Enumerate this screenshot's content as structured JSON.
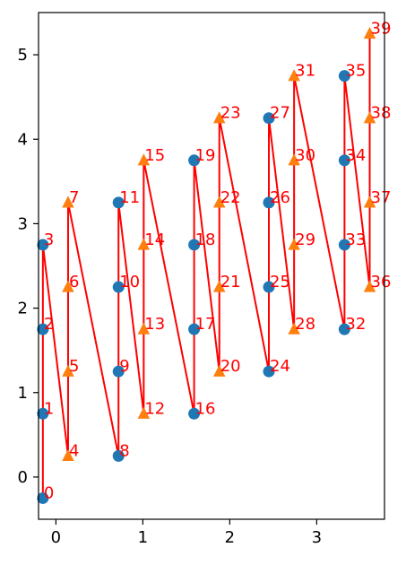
{
  "chart_data": {
    "type": "scatter",
    "title": "",
    "xlabel": "",
    "ylabel": "",
    "xlim": [
      -0.2,
      3.78
    ],
    "ylim": [
      -0.5,
      5.5
    ],
    "xticks": [
      0,
      1,
      2,
      3
    ],
    "yticks": [
      0,
      1,
      2,
      3,
      4,
      5
    ],
    "grid": false,
    "colors": {
      "circle": "#1f77b4",
      "triangle": "#ff7f0e",
      "line": "#ff0000",
      "label": "#ff0000"
    },
    "points": [
      {
        "label": "0",
        "x": -0.15,
        "y": -0.25,
        "marker": "circle"
      },
      {
        "label": "1",
        "x": -0.15,
        "y": 0.75,
        "marker": "circle"
      },
      {
        "label": "2",
        "x": -0.15,
        "y": 1.75,
        "marker": "circle"
      },
      {
        "label": "3",
        "x": -0.15,
        "y": 2.75,
        "marker": "circle"
      },
      {
        "label": "4",
        "x": 0.14,
        "y": 0.25,
        "marker": "triangle"
      },
      {
        "label": "5",
        "x": 0.14,
        "y": 1.25,
        "marker": "triangle"
      },
      {
        "label": "6",
        "x": 0.14,
        "y": 2.25,
        "marker": "triangle"
      },
      {
        "label": "7",
        "x": 0.14,
        "y": 3.25,
        "marker": "triangle"
      },
      {
        "label": "8",
        "x": 0.72,
        "y": 0.25,
        "marker": "circle"
      },
      {
        "label": "9",
        "x": 0.72,
        "y": 1.25,
        "marker": "circle"
      },
      {
        "label": "10",
        "x": 0.72,
        "y": 2.25,
        "marker": "circle"
      },
      {
        "label": "11",
        "x": 0.72,
        "y": 3.25,
        "marker": "circle"
      },
      {
        "label": "12",
        "x": 1.01,
        "y": 0.75,
        "marker": "triangle"
      },
      {
        "label": "13",
        "x": 1.01,
        "y": 1.75,
        "marker": "triangle"
      },
      {
        "label": "14",
        "x": 1.01,
        "y": 2.75,
        "marker": "triangle"
      },
      {
        "label": "15",
        "x": 1.01,
        "y": 3.75,
        "marker": "triangle"
      },
      {
        "label": "16",
        "x": 1.59,
        "y": 0.75,
        "marker": "circle"
      },
      {
        "label": "17",
        "x": 1.59,
        "y": 1.75,
        "marker": "circle"
      },
      {
        "label": "18",
        "x": 1.59,
        "y": 2.75,
        "marker": "circle"
      },
      {
        "label": "19",
        "x": 1.59,
        "y": 3.75,
        "marker": "circle"
      },
      {
        "label": "20",
        "x": 1.88,
        "y": 1.25,
        "marker": "triangle"
      },
      {
        "label": "21",
        "x": 1.88,
        "y": 2.25,
        "marker": "triangle"
      },
      {
        "label": "22",
        "x": 1.88,
        "y": 3.25,
        "marker": "triangle"
      },
      {
        "label": "23",
        "x": 1.88,
        "y": 4.25,
        "marker": "triangle"
      },
      {
        "label": "24",
        "x": 2.45,
        "y": 1.25,
        "marker": "circle"
      },
      {
        "label": "25",
        "x": 2.45,
        "y": 2.25,
        "marker": "circle"
      },
      {
        "label": "26",
        "x": 2.45,
        "y": 3.25,
        "marker": "circle"
      },
      {
        "label": "27",
        "x": 2.45,
        "y": 4.25,
        "marker": "circle"
      },
      {
        "label": "28",
        "x": 2.74,
        "y": 1.75,
        "marker": "triangle"
      },
      {
        "label": "29",
        "x": 2.74,
        "y": 2.75,
        "marker": "triangle"
      },
      {
        "label": "30",
        "x": 2.74,
        "y": 3.75,
        "marker": "triangle"
      },
      {
        "label": "31",
        "x": 2.74,
        "y": 4.75,
        "marker": "triangle"
      },
      {
        "label": "32",
        "x": 3.32,
        "y": 1.75,
        "marker": "circle"
      },
      {
        "label": "33",
        "x": 3.32,
        "y": 2.75,
        "marker": "circle"
      },
      {
        "label": "34",
        "x": 3.32,
        "y": 3.75,
        "marker": "circle"
      },
      {
        "label": "35",
        "x": 3.32,
        "y": 4.75,
        "marker": "circle"
      },
      {
        "label": "36",
        "x": 3.61,
        "y": 2.25,
        "marker": "triangle"
      },
      {
        "label": "37",
        "x": 3.61,
        "y": 3.25,
        "marker": "triangle"
      },
      {
        "label": "38",
        "x": 3.61,
        "y": 4.25,
        "marker": "triangle"
      },
      {
        "label": "39",
        "x": 3.61,
        "y": 5.25,
        "marker": "triangle"
      }
    ]
  }
}
